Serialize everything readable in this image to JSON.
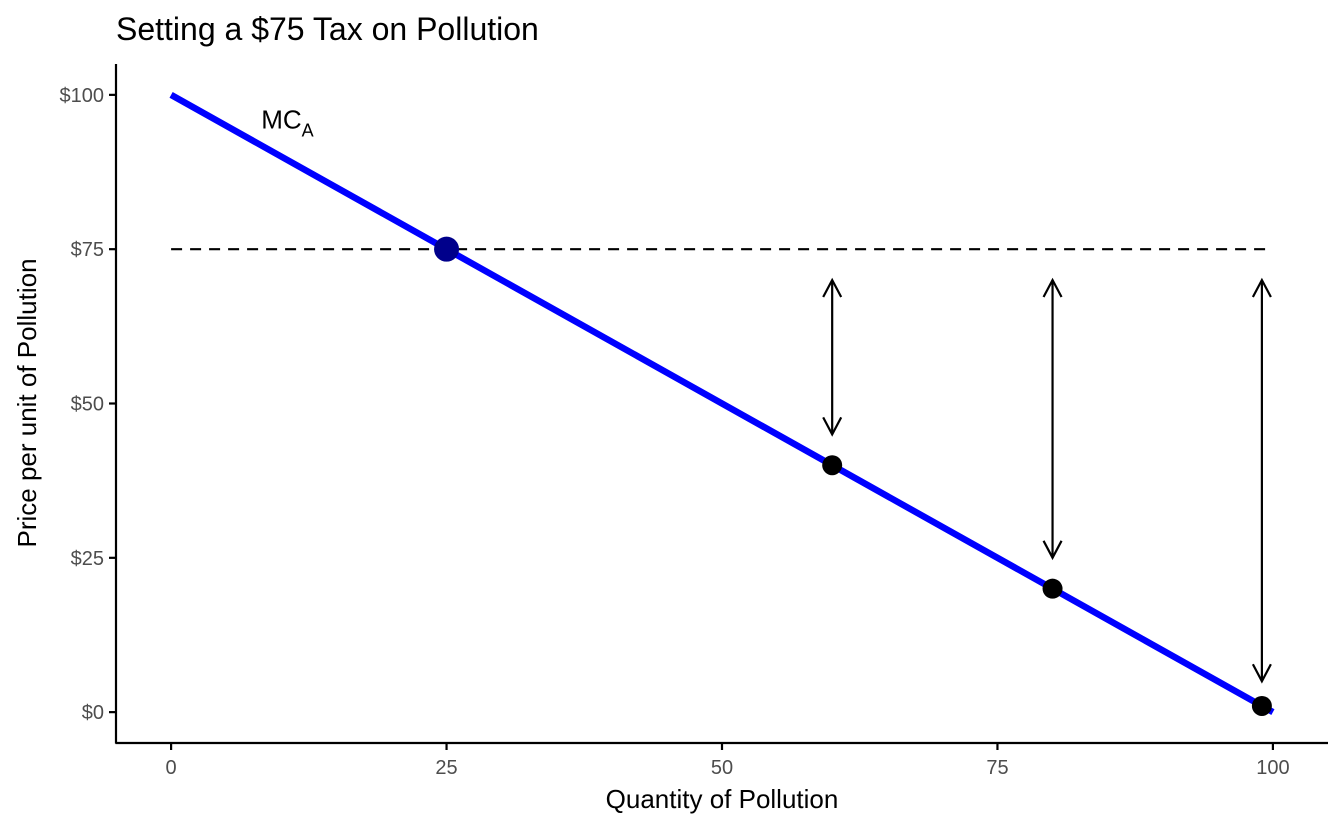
{
  "chart_data": {
    "type": "line",
    "title": "Setting a $75 Tax on Pollution",
    "xlabel": "Quantity of Pollution",
    "ylabel": "Price per unit of Pollution",
    "xlim": [
      -5,
      105
    ],
    "ylim": [
      -5,
      105
    ],
    "x_ticks": [
      0,
      25,
      50,
      75,
      100
    ],
    "x_tick_labels": [
      "0",
      "25",
      "50",
      "75",
      "100"
    ],
    "y_ticks": [
      0,
      25,
      50,
      75,
      100
    ],
    "y_tick_labels": [
      "$0",
      "$25",
      "$50",
      "$75",
      "$100"
    ],
    "grid": false,
    "curve": {
      "label_main": "MC",
      "label_sub": "A",
      "color": "#0000ff",
      "points": [
        [
          0,
          100
        ],
        [
          100,
          0
        ]
      ],
      "label_pos": [
        8,
        96
      ]
    },
    "tax_line": {
      "y": 75,
      "x": [
        0,
        100
      ],
      "color": "#000000",
      "style": "dashed"
    },
    "highlight_point": {
      "x": 25,
      "y": 75,
      "color": "#00008b"
    },
    "points": [
      {
        "x": 60,
        "y": 40
      },
      {
        "x": 80,
        "y": 20
      },
      {
        "x": 99,
        "y": 1
      }
    ],
    "arrows": [
      {
        "x": 60,
        "y_from": 70,
        "y_to": 45
      },
      {
        "x": 80,
        "y_from": 70,
        "y_to": 25
      },
      {
        "x": 99,
        "y_from": 70,
        "y_to": 5
      }
    ],
    "colors": {
      "axis": "#000000",
      "tick_label": "#4d4d4d",
      "point": "#000000"
    }
  }
}
